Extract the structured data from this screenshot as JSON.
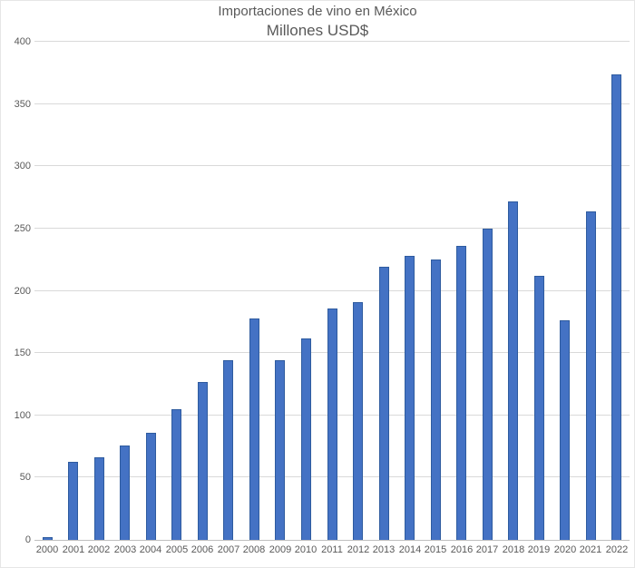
{
  "chart_data": {
    "type": "bar",
    "title": "Importaciones de vino en México",
    "subtitle": "Millones USD$",
    "categories": [
      "2000",
      "2001",
      "2002",
      "2003",
      "2004",
      "2005",
      "2006",
      "2007",
      "2008",
      "2009",
      "2010",
      "2011",
      "2012",
      "2013",
      "2014",
      "2015",
      "2016",
      "2017",
      "2018",
      "2019",
      "2020",
      "2021",
      "2022"
    ],
    "values": [
      2,
      63,
      66,
      76,
      86,
      105,
      127,
      144,
      178,
      144,
      162,
      186,
      191,
      219,
      228,
      225,
      236,
      250,
      272,
      212,
      176,
      264,
      374
    ],
    "xlabel": "",
    "ylabel": "",
    "ylim": [
      0,
      400
    ],
    "ytick_step": 50,
    "grid": true,
    "legend_position": "none",
    "bar_color": "#4472C4",
    "bar_border_color": "#2E5B9F",
    "gridline_color": "#D9D9D9",
    "axis_line_color": "#BFBFBF",
    "label_color": "#595959",
    "title_color": "#595959",
    "background_color": "#FFFFFF"
  }
}
